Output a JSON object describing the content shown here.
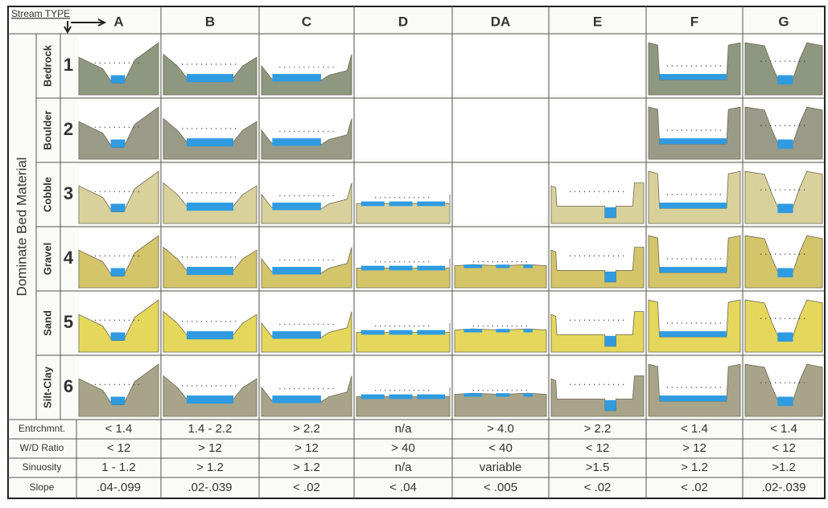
{
  "header": {
    "stream_type_label": "Stream TYPE",
    "axis_label": "Dominate Bed Material"
  },
  "columns": [
    "A",
    "B",
    "C",
    "D",
    "DA",
    "E",
    "F",
    "G"
  ],
  "materials": [
    {
      "number": 1,
      "name": "Bedrock"
    },
    {
      "number": 2,
      "name": "Boulder"
    },
    {
      "number": 3,
      "name": "Cobble"
    },
    {
      "number": 4,
      "name": "Gravel"
    },
    {
      "number": 5,
      "name": "Sand"
    },
    {
      "number": 6,
      "name": "Silt-Clay"
    }
  ],
  "criteria": [
    {
      "label": "Entrchmnt.",
      "values": [
        "< 1.4",
        "1.4 - 2.2",
        "> 2.2",
        "n/a",
        "> 4.0",
        "> 2.2",
        "< 1.4",
        "< 1.4"
      ]
    },
    {
      "label": "W/D Ratio",
      "values": [
        "< 12",
        "> 12",
        "> 12",
        "> 40",
        "< 40",
        "< 12",
        "> 12",
        "< 12"
      ]
    },
    {
      "label": "Sinuosity",
      "values": [
        "1 - 1.2",
        "> 1.2",
        "> 1.2",
        "n/a",
        "variable",
        ">1.5",
        "> 1.2",
        ">1.2"
      ]
    },
    {
      "label": "Slope",
      "values": [
        ".04-.099",
        ".02-.039",
        "< .02",
        "< .04",
        "< .005",
        "< .02",
        "< .02",
        ".02-.039"
      ]
    }
  ]
}
